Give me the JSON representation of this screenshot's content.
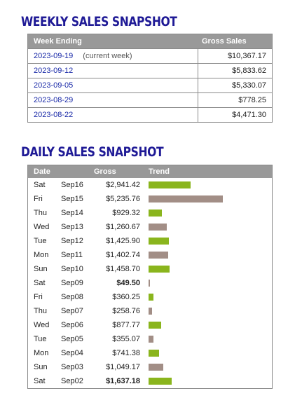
{
  "weekly": {
    "title": "WEEKLY SALES SNAPSHOT",
    "headers": {
      "week": "Week Ending",
      "gross": "Gross Sales"
    },
    "rows": [
      {
        "date": "2023-09-19",
        "note": "(current week)",
        "gross": "$10,367.17"
      },
      {
        "date": "2023-09-12",
        "note": "",
        "gross": "$5,833.62"
      },
      {
        "date": "2023-09-05",
        "note": "",
        "gross": "$5,330.07"
      },
      {
        "date": "2023-08-29",
        "note": "",
        "gross": "$778.25"
      },
      {
        "date": "2023-08-22",
        "note": "",
        "gross": "$4,471.30"
      }
    ]
  },
  "daily": {
    "title": "DAILY SALES SNAPSHOT",
    "headers": {
      "date": "Date",
      "gross": "Gross",
      "trend": "Trend"
    },
    "bar_scale_max": 5235.76,
    "colors": {
      "up": "#8ab51d",
      "down": "#a28e86"
    },
    "rows": [
      {
        "day": "Sat",
        "date": "Sep16",
        "gross": "$2,941.42",
        "value": 2941.42,
        "trend": "up",
        "bold": false
      },
      {
        "day": "Fri",
        "date": "Sep15",
        "gross": "$5,235.76",
        "value": 5235.76,
        "trend": "down",
        "bold": false
      },
      {
        "day": "Thu",
        "date": "Sep14",
        "gross": "$929.32",
        "value": 929.32,
        "trend": "up",
        "bold": false
      },
      {
        "day": "Wed",
        "date": "Sep13",
        "gross": "$1,260.67",
        "value": 1260.67,
        "trend": "down",
        "bold": false
      },
      {
        "day": "Tue",
        "date": "Sep12",
        "gross": "$1,425.90",
        "value": 1425.9,
        "trend": "up",
        "bold": false
      },
      {
        "day": "Mon",
        "date": "Sep11",
        "gross": "$1,402.74",
        "value": 1402.74,
        "trend": "down",
        "bold": false
      },
      {
        "day": "Sun",
        "date": "Sep10",
        "gross": "$1,458.70",
        "value": 1458.7,
        "trend": "up",
        "bold": false
      },
      {
        "day": "Sat",
        "date": "Sep09",
        "gross": "$49.50",
        "value": 49.5,
        "trend": "down",
        "bold": true
      },
      {
        "day": "Fri",
        "date": "Sep08",
        "gross": "$360.25",
        "value": 360.25,
        "trend": "up",
        "bold": false
      },
      {
        "day": "Thu",
        "date": "Sep07",
        "gross": "$258.76",
        "value": 258.76,
        "trend": "down",
        "bold": false
      },
      {
        "day": "Wed",
        "date": "Sep06",
        "gross": "$877.77",
        "value": 877.77,
        "trend": "up",
        "bold": false
      },
      {
        "day": "Tue",
        "date": "Sep05",
        "gross": "$355.07",
        "value": 355.07,
        "trend": "down",
        "bold": false
      },
      {
        "day": "Mon",
        "date": "Sep04",
        "gross": "$741.38",
        "value": 741.38,
        "trend": "up",
        "bold": false
      },
      {
        "day": "Sun",
        "date": "Sep03",
        "gross": "$1,049.17",
        "value": 1049.17,
        "trend": "down",
        "bold": false
      },
      {
        "day": "Sat",
        "date": "Sep02",
        "gross": "$1,637.18",
        "value": 1637.18,
        "trend": "up",
        "bold": true
      }
    ]
  }
}
